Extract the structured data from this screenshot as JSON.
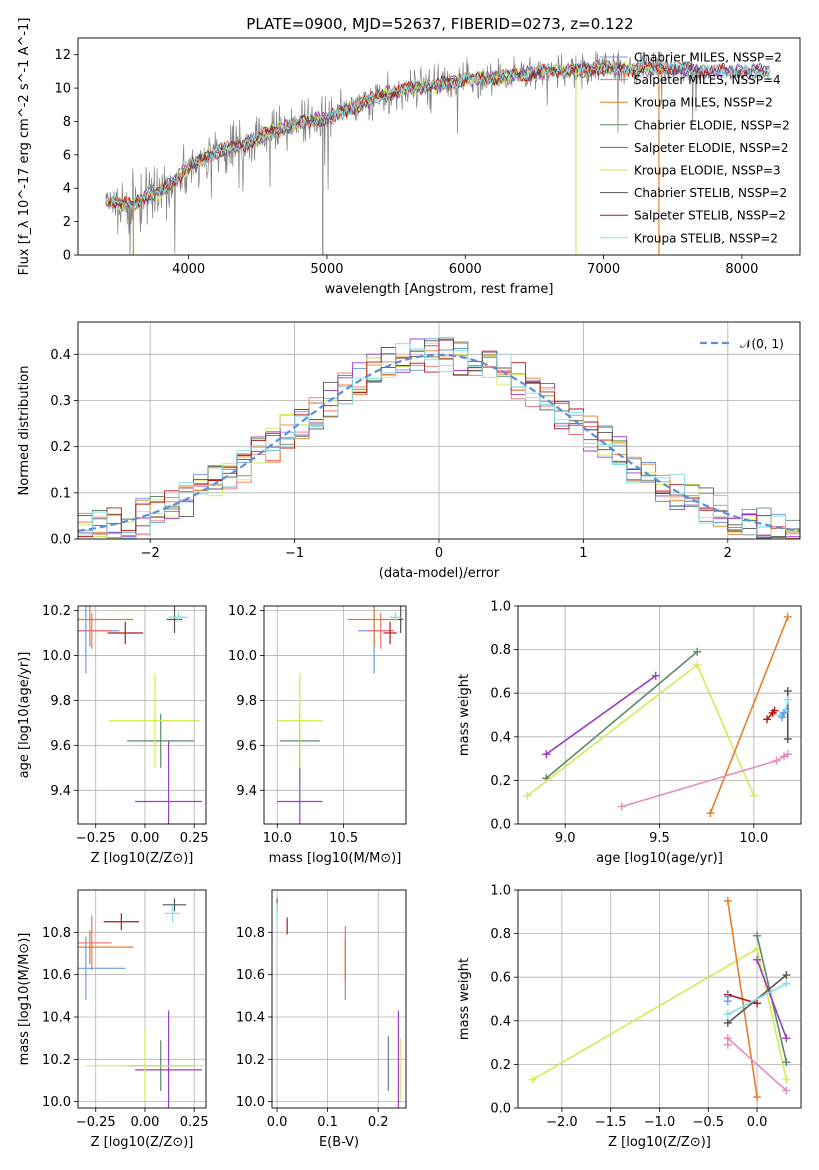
{
  "figure_title": "PLATE=0900, MJD=52637, FIBERID=0273, z=0.122",
  "colors": {
    "Chabrier MILES": "#6c9be3",
    "Salpeter MILES": "#f07070",
    "Kroupa MILES": "#e47f2e",
    "Chabrier ELODIE": "#5e8a68",
    "Salpeter ELODIE": "#9a3fbf",
    "Kroupa ELODIE": "#d4ea55",
    "Chabrier STELIB": "#555555",
    "Salpeter STELIB": "#b01818",
    "Kroupa STELIB": "#85dde6",
    "pink": "#e58bc0",
    "gaussian": "#5b8fd6"
  },
  "chart_data": [
    {
      "id": "spectrum",
      "type": "line",
      "title": "PLATE=0900, MJD=52637, FIBERID=0273, z=0.122",
      "xlabel": "wavelength [Angstrom, rest frame]",
      "ylabel": "Flux [f_λ 10^-17 erg cm^-2 s^-1 A^-1]",
      "xlim": [
        3200,
        8420
      ],
      "ylim": [
        0,
        13
      ],
      "xticks": [
        4000,
        5000,
        6000,
        7000,
        8000
      ],
      "yticks": [
        0,
        2,
        4,
        6,
        8,
        10,
        12
      ],
      "grid": false,
      "legend_position": "right",
      "legend": [
        {
          "name": "Chabrier MILES, N_SSP=2",
          "color": "#6c9be3"
        },
        {
          "name": "Salpeter MILES, N_SSP=4",
          "color": "#f07070"
        },
        {
          "name": "Kroupa MILES, N_SSP=2",
          "color": "#e47f2e"
        },
        {
          "name": "Chabrier ELODIE, N_SSP=2",
          "color": "#5e8a68"
        },
        {
          "name": "Salpeter ELODIE, N_SSP=2",
          "color": "#9a3fbf"
        },
        {
          "name": "Kroupa ELODIE, N_SSP=3",
          "color": "#d4ea55"
        },
        {
          "name": "Chabrier STELIB, N_SSP=2",
          "color": "#555555"
        },
        {
          "name": "Salpeter STELIB, N_SSP=2",
          "color": "#b01818"
        },
        {
          "name": "Kroupa STELIB, N_SSP=2",
          "color": "#85dde6"
        }
      ],
      "data_color": "#808080",
      "continuum": [
        [
          3400,
          3.2
        ],
        [
          3600,
          3.0
        ],
        [
          3700,
          3.6
        ],
        [
          3800,
          3.8
        ],
        [
          3900,
          4.5
        ],
        [
          4000,
          5.3
        ],
        [
          4200,
          6.2
        ],
        [
          4400,
          6.6
        ],
        [
          4600,
          7.4
        ],
        [
          4800,
          7.9
        ],
        [
          5000,
          8.2
        ],
        [
          5200,
          8.9
        ],
        [
          5400,
          9.6
        ],
        [
          5600,
          10.0
        ],
        [
          5800,
          10.2
        ],
        [
          6000,
          10.5
        ],
        [
          6200,
          10.6
        ],
        [
          6400,
          10.8
        ],
        [
          6600,
          11.0
        ],
        [
          6800,
          11.1
        ],
        [
          7000,
          11.2
        ],
        [
          7200,
          11.1
        ],
        [
          7400,
          11.2
        ],
        [
          7600,
          11.1
        ],
        [
          7800,
          11.0
        ],
        [
          8000,
          11.0
        ],
        [
          8200,
          11.0
        ]
      ],
      "notable_features": [
        {
          "x": 4970,
          "low": 0,
          "note": "spike"
        },
        {
          "x": 6800,
          "low": 0,
          "note": "Kroupa ELODIE drop"
        },
        {
          "x": 7400,
          "low": 0,
          "note": "Kroupa MILES drop"
        },
        {
          "x": 3600,
          "low": 0,
          "note": "Kroupa MILES drop"
        }
      ]
    },
    {
      "id": "residuals",
      "type": "histogram",
      "xlabel": "(data-model)/error",
      "ylabel": "Normed distribution",
      "xlim": [
        -2.5,
        2.5
      ],
      "ylim": [
        0,
        0.47
      ],
      "xticks": [
        -2,
        -1,
        0,
        1,
        2
      ],
      "yticks": [
        0.0,
        0.1,
        0.2,
        0.3,
        0.4
      ],
      "grid": true,
      "legend_position": "top-right",
      "legend": [
        {
          "name": "𝒩(0, 1)",
          "color": "#5b8fd6",
          "style": "dashed"
        }
      ],
      "gaussian": {
        "mean": 0,
        "sigma": 1
      }
    },
    {
      "id": "age-vs-Z",
      "type": "errorbar",
      "xlabel": "Z [log10(Z/Z⊙)]",
      "ylabel": "age [log10(age/yr)]",
      "xlim": [
        -0.34,
        0.31
      ],
      "ylim": [
        9.25,
        10.22
      ],
      "xticks": [
        -0.25,
        0.0,
        0.25
      ],
      "yticks": [
        9.4,
        9.6,
        9.8,
        10.0,
        10.2
      ],
      "grid": true,
      "points": [
        {
          "color": "#6c9be3",
          "x": -0.3,
          "y": 10.11,
          "xerr": 0.17,
          "yerr": 0.19
        },
        {
          "color": "#f07070",
          "x": -0.27,
          "y": 10.11,
          "xerr": 0.1,
          "yerr": 0.08
        },
        {
          "color": "#e47f2e",
          "x": -0.28,
          "y": 10.16,
          "xerr": 0.22,
          "yerr": 0.12
        },
        {
          "color": "#5e8a68",
          "x": 0.08,
          "y": 9.62,
          "xerr": 0.17,
          "yerr": 0.12
        },
        {
          "color": "#9a3fbf",
          "x": 0.12,
          "y": 9.35,
          "xerr": 0.17,
          "yerr": 0.27
        },
        {
          "color": "#d4ea55",
          "x": 0.05,
          "y": 9.71,
          "xerr": 0.23,
          "yerr": 0.21
        },
        {
          "color": "#555555",
          "x": 0.15,
          "y": 10.16,
          "xerr": 0.04,
          "yerr": 0.06
        },
        {
          "color": "#b01818",
          "x": -0.1,
          "y": 10.1,
          "xerr": 0.09,
          "yerr": 0.05
        },
        {
          "color": "#85dde6",
          "x": 0.17,
          "y": 10.17,
          "xerr": 0.05,
          "yerr": 0.02
        }
      ]
    },
    {
      "id": "age-vs-mass",
      "type": "errorbar",
      "xlabel": "mass [log10(M/M⊙)]",
      "ylabel": "",
      "xlim": [
        9.9,
        10.97
      ],
      "ylim": [
        9.25,
        10.22
      ],
      "xticks": [
        10.0,
        10.5
      ],
      "yticks": [
        9.4,
        9.6,
        9.8,
        10.0,
        10.2
      ],
      "grid": true,
      "points": [
        {
          "color": "#6c9be3",
          "x": 10.73,
          "y": 10.11,
          "xerr": 0.12,
          "yerr": 0.19
        },
        {
          "color": "#f07070",
          "x": 10.78,
          "y": 10.11,
          "xerr": 0.1,
          "yerr": 0.08
        },
        {
          "color": "#e47f2e",
          "x": 10.73,
          "y": 10.16,
          "xerr": 0.2,
          "yerr": 0.12
        },
        {
          "color": "#5e8a68",
          "x": 10.17,
          "y": 9.62,
          "xerr": 0.15,
          "yerr": 0.12
        },
        {
          "color": "#9a3fbf",
          "x": 10.17,
          "y": 9.35,
          "xerr": 0.17,
          "yerr": 0.27
        },
        {
          "color": "#d4ea55",
          "x": 10.17,
          "y": 9.71,
          "xerr": 0.17,
          "yerr": 0.21
        },
        {
          "color": "#555555",
          "x": 10.93,
          "y": 10.16,
          "xerr": 0.02,
          "yerr": 0.06
        },
        {
          "color": "#b01818",
          "x": 10.85,
          "y": 10.1,
          "xerr": 0.05,
          "yerr": 0.05
        },
        {
          "color": "#85dde6",
          "x": 10.89,
          "y": 10.17,
          "xerr": 0.04,
          "yerr": 0.02
        }
      ]
    },
    {
      "id": "mass-weight-vs-age",
      "type": "line",
      "xlabel": "age [log10(age/yr)]",
      "ylabel": "mass weight",
      "xlim": [
        8.75,
        10.25
      ],
      "ylim": [
        0.0,
        1.0
      ],
      "xticks": [
        9.0,
        9.5,
        10.0
      ],
      "yticks": [
        0.0,
        0.2,
        0.4,
        0.6,
        0.8,
        1.0
      ],
      "grid": true,
      "series": [
        {
          "color": "#9a3fbf",
          "x": [
            8.9,
            9.48
          ],
          "y": [
            0.32,
            0.68
          ]
        },
        {
          "color": "#5e8a68",
          "x": [
            8.9,
            9.7
          ],
          "y": [
            0.21,
            0.79
          ]
        },
        {
          "color": "#d4ea55",
          "x": [
            8.8,
            9.7,
            10.0
          ],
          "y": [
            0.13,
            0.73,
            0.13
          ]
        },
        {
          "color": "#e47f2e",
          "x": [
            9.77,
            10.18
          ],
          "y": [
            0.05,
            0.95
          ]
        },
        {
          "color": "#e58bc0",
          "x": [
            9.3,
            10.12,
            10.16,
            10.18
          ],
          "y": [
            0.08,
            0.29,
            0.31,
            0.32
          ]
        },
        {
          "color": "#b01818",
          "x": [
            10.07,
            10.1,
            10.11
          ],
          "y": [
            0.48,
            0.51,
            0.52
          ]
        },
        {
          "color": "#555555",
          "x": [
            10.18,
            10.18
          ],
          "y": [
            0.39,
            0.61
          ]
        },
        {
          "color": "#85dde6",
          "x": [
            10.14,
            10.17,
            10.18
          ],
          "y": [
            0.5,
            0.52,
            0.57
          ]
        },
        {
          "color": "#6c9be3",
          "x": [
            10.15,
            10.16
          ],
          "y": [
            0.49,
            0.51
          ]
        }
      ]
    },
    {
      "id": "mass-vs-Z",
      "type": "errorbar",
      "xlabel": "Z [log10(Z/Z⊙)]",
      "ylabel": "mass [log10(M/M⊙)]",
      "xlim": [
        -0.34,
        0.31
      ],
      "ylim": [
        9.97,
        11.0
      ],
      "xticks": [
        -0.25,
        0.0,
        0.25
      ],
      "yticks": [
        10.0,
        10.2,
        10.4,
        10.6,
        10.8
      ],
      "grid": true,
      "points": [
        {
          "color": "#6c9be3",
          "x": -0.3,
          "y": 10.63,
          "xerr": 0.2,
          "yerr": 0.15
        },
        {
          "color": "#f07070",
          "x": -0.27,
          "y": 10.75,
          "xerr": 0.1,
          "yerr": 0.13
        },
        {
          "color": "#e47f2e",
          "x": -0.28,
          "y": 10.73,
          "xerr": 0.22,
          "yerr": 0.08
        },
        {
          "color": "#5e8a68",
          "x": 0.08,
          "y": 10.17,
          "xerr": 0.17,
          "yerr": 0.12
        },
        {
          "color": "#9a3fbf",
          "x": 0.12,
          "y": 10.15,
          "xerr": 0.17,
          "yerr": 0.28
        },
        {
          "color": "#d4ea55",
          "x": 0.0,
          "y": 10.17,
          "xerr": 0.3,
          "yerr": 0.17
        },
        {
          "color": "#555555",
          "x": 0.15,
          "y": 10.93,
          "xerr": 0.06,
          "yerr": 0.03
        },
        {
          "color": "#b01818",
          "x": -0.12,
          "y": 10.85,
          "xerr": 0.09,
          "yerr": 0.04
        },
        {
          "color": "#85dde6",
          "x": 0.14,
          "y": 10.89,
          "xerr": 0.04,
          "yerr": 0.04
        }
      ]
    },
    {
      "id": "mass-vs-EBV",
      "type": "errorbar",
      "xlabel": "E(B-V)",
      "ylabel": "",
      "xlim": [
        -0.01,
        0.255
      ],
      "ylim": [
        9.97,
        11.0
      ],
      "xticks": [
        0.0,
        0.1,
        0.2
      ],
      "yticks": [
        10.0,
        10.2,
        10.4,
        10.6,
        10.8
      ],
      "grid": true,
      "points": [
        {
          "color": "#6c9be3",
          "x": 0.135,
          "y": 10.63,
          "xerr": 0.0,
          "yerr": 0.15
        },
        {
          "color": "#f07070",
          "x": 0.135,
          "y": 10.7,
          "xerr": 0.0,
          "yerr": 0.13
        },
        {
          "color": "#e47f2e",
          "x": 0.135,
          "y": 10.66,
          "xerr": 0.0,
          "yerr": 0.1
        },
        {
          "color": "#5e8a68",
          "x": 0.22,
          "y": 10.18,
          "xerr": 0.0,
          "yerr": 0.13
        },
        {
          "color": "#9a3fbf",
          "x": 0.24,
          "y": 10.15,
          "xerr": 0.0,
          "yerr": 0.28
        },
        {
          "color": "#d4ea55",
          "x": 0.245,
          "y": 10.15,
          "xerr": 0.0,
          "yerr": 0.15
        },
        {
          "color": "#555555",
          "x": 0.0,
          "y": 10.93,
          "xerr": 0.0,
          "yerr": 0.03
        },
        {
          "color": "#b01818",
          "x": 0.02,
          "y": 10.83,
          "xerr": 0.0,
          "yerr": 0.04
        },
        {
          "color": "#85dde6",
          "x": 0.0,
          "y": 10.9,
          "xerr": 0.0,
          "yerr": 0.04
        }
      ]
    },
    {
      "id": "mass-weight-vs-Z",
      "type": "line",
      "xlabel": "Z [log10(Z/Z⊙)]",
      "ylabel": "mass weight",
      "xlim": [
        -2.45,
        0.45
      ],
      "ylim": [
        0.0,
        1.0
      ],
      "xticks": [
        -2.0,
        -1.5,
        -1.0,
        -0.5,
        0.0
      ],
      "yticks": [
        0.0,
        0.2,
        0.4,
        0.6,
        0.8,
        1.0
      ],
      "grid": true,
      "series": [
        {
          "color": "#d4ea55",
          "x": [
            -2.3,
            0.0,
            0.3
          ],
          "y": [
            0.13,
            0.73,
            0.13
          ]
        },
        {
          "color": "#e47f2e",
          "x": [
            -0.3,
            0.0
          ],
          "y": [
            0.95,
            0.05
          ]
        },
        {
          "color": "#5e8a68",
          "x": [
            0.0,
            0.3
          ],
          "y": [
            0.79,
            0.21
          ]
        },
        {
          "color": "#9a3fbf",
          "x": [
            0.0,
            0.3
          ],
          "y": [
            0.68,
            0.32
          ]
        },
        {
          "color": "#e58bc0",
          "x": [
            -0.3,
            -0.3,
            0.3
          ],
          "y": [
            0.29,
            0.32,
            0.08
          ]
        },
        {
          "color": "#b01818",
          "x": [
            -0.3,
            0.0
          ],
          "y": [
            0.52,
            0.48
          ]
        },
        {
          "color": "#555555",
          "x": [
            -0.3,
            0.3
          ],
          "y": [
            0.39,
            0.61
          ]
        },
        {
          "color": "#85dde6",
          "x": [
            -0.3,
            0.3
          ],
          "y": [
            0.43,
            0.57
          ]
        },
        {
          "color": "#6c9be3",
          "x": [
            -0.3,
            -0.3
          ],
          "y": [
            0.49,
            0.51
          ]
        }
      ]
    }
  ]
}
